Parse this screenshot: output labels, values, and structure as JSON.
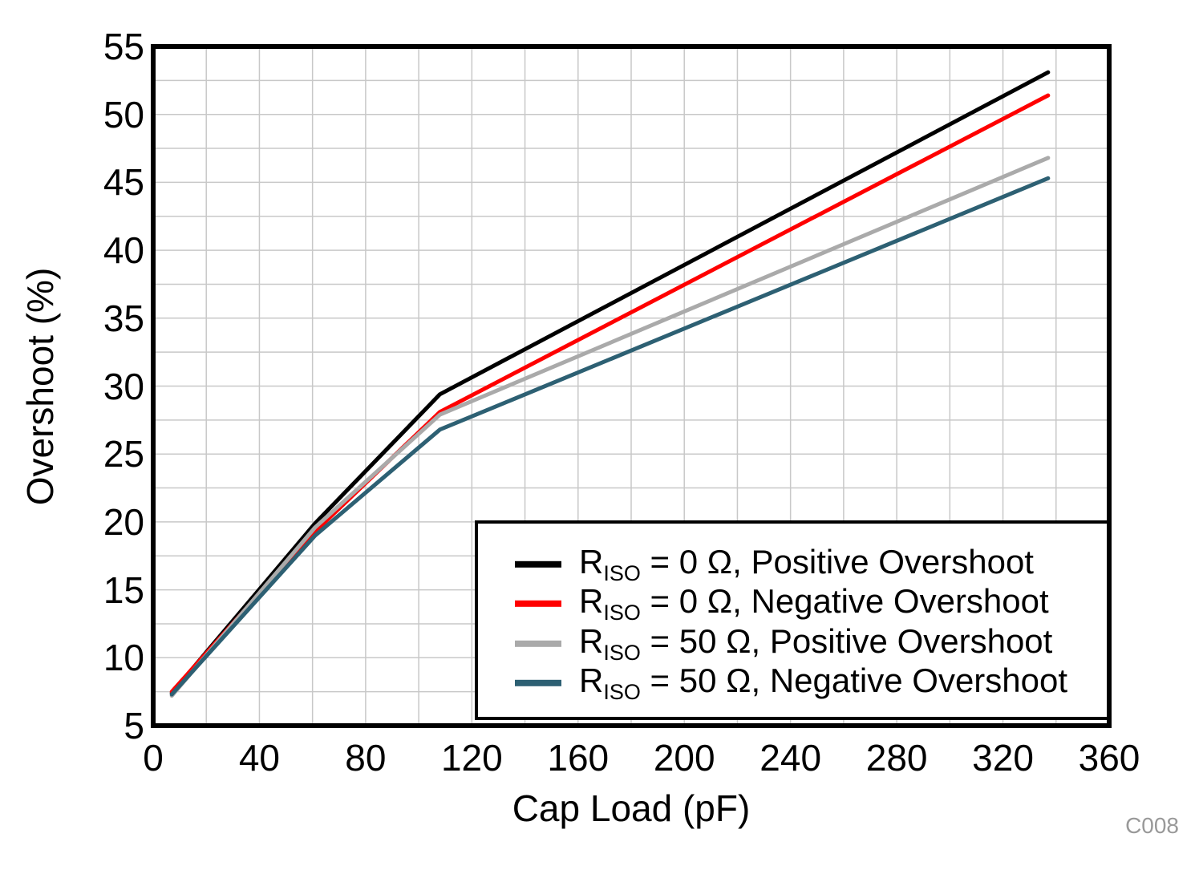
{
  "watermark": "C008",
  "colors": {
    "grid": "#c8c8c8",
    "plot_border": "#000000",
    "tick_text": "#000000",
    "watermark_text": "#999999",
    "background": "#ffffff"
  },
  "chart_data": {
    "type": "line",
    "title": "",
    "xlabel": "Cap Load (pF)",
    "ylabel": "Overshoot (%)",
    "xlim": [
      0,
      360
    ],
    "ylim": [
      5,
      55
    ],
    "x_ticks": [
      0,
      40,
      80,
      120,
      160,
      200,
      240,
      280,
      320,
      360
    ],
    "y_ticks": [
      5,
      10,
      15,
      20,
      25,
      30,
      35,
      40,
      45,
      50,
      55
    ],
    "x_minor_grid_step": 20,
    "y_minor_grid_step": 2.5,
    "grid": true,
    "legend_position": "inside-bottom-right",
    "watermark": "C008",
    "series": [
      {
        "name": "RISO = 0 Ω, Positive Overshoot",
        "label_parts": {
          "pre": "R",
          "sub": "ISO",
          "rest": " = 0 Ω, Positive Overshoot"
        },
        "color": "#000000",
        "x": [
          7,
          61,
          108,
          337
        ],
        "y": [
          7.4,
          19.9,
          29.4,
          53.1
        ]
      },
      {
        "name": "RISO = 0 Ω, Negative Overshoot",
        "label_parts": {
          "pre": "R",
          "sub": "ISO",
          "rest": " = 0 Ω, Negative Overshoot"
        },
        "color": "#ff0000",
        "x": [
          7,
          61,
          108,
          337
        ],
        "y": [
          7.5,
          19.3,
          28.1,
          51.4
        ]
      },
      {
        "name": "RISO = 50 Ω, Positive Overshoot",
        "label_parts": {
          "pre": "R",
          "sub": "ISO",
          "rest": " = 50 Ω, Positive Overshoot"
        },
        "color": "#aaaaaa",
        "x": [
          7,
          61,
          108,
          337
        ],
        "y": [
          7.2,
          19.6,
          27.9,
          46.8
        ]
      },
      {
        "name": "RISO = 50 Ω, Negative Overshoot",
        "label_parts": {
          "pre": "R",
          "sub": "ISO",
          "rest": " = 50 Ω, Negative Overshoot"
        },
        "color": "#2d6073",
        "x": [
          7,
          61,
          108,
          337
        ],
        "y": [
          7.3,
          19.0,
          26.8,
          45.3
        ]
      }
    ]
  }
}
